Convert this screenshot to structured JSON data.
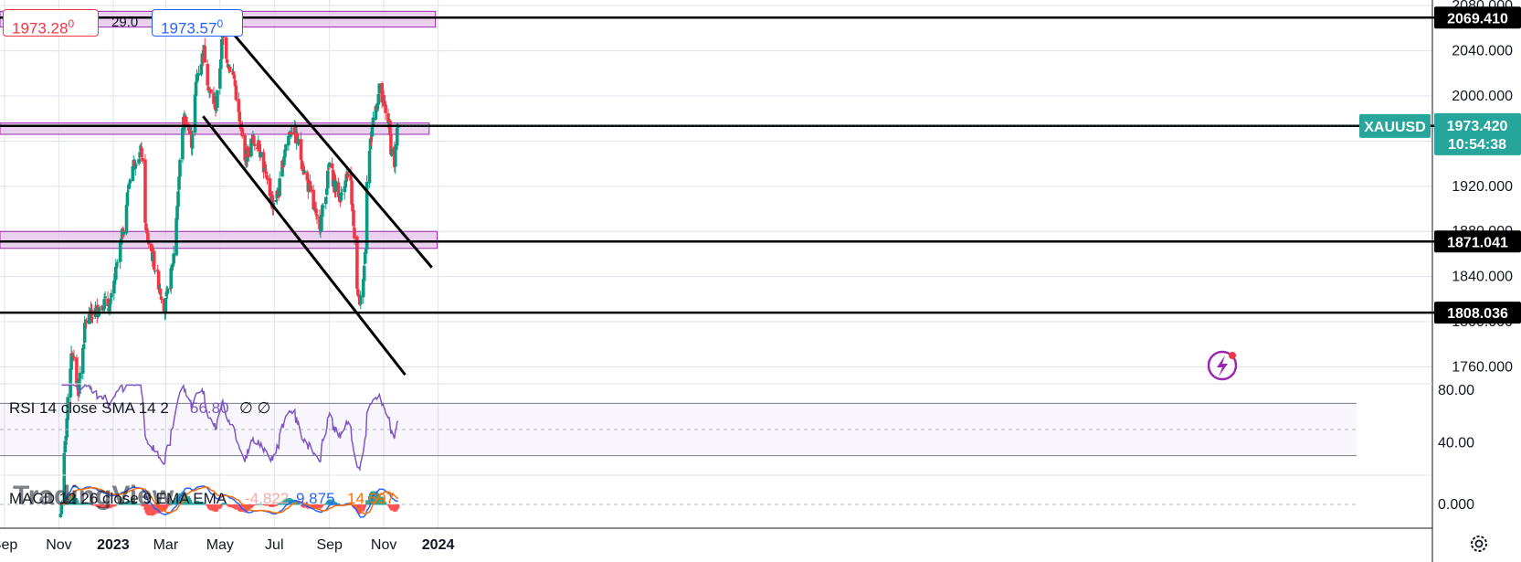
{
  "header": {
    "bid": "1973.28",
    "bid_sup": "0",
    "spread": "29.0",
    "ask": "1973.57",
    "ask_sup": "0",
    "bid_color": "#f23645",
    "ask_color": "#2962ff"
  },
  "chart_data": [
    {
      "type": "candlestick",
      "symbol": "XAUUSD",
      "last_price": "1973.420",
      "countdown": "10:54:38",
      "ylim": [
        1745,
        2085
      ],
      "y_ticks": [
        "2080.000",
        "2040.000",
        "2000.000",
        "1960.000",
        "1920.000",
        "1880.000",
        "1840.000",
        "1800.000",
        "1760.000"
      ],
      "x_ticks": [
        {
          "label": "Sep",
          "date": "2022-09-01"
        },
        {
          "label": "Nov",
          "date": "2022-11-01"
        },
        {
          "label": "2023",
          "date": "2023-01-01"
        },
        {
          "label": "Mar",
          "date": "2023-03-01"
        },
        {
          "label": "May",
          "date": "2023-05-01"
        },
        {
          "label": "Jul",
          "date": "2023-07-01"
        },
        {
          "label": "Sep",
          "date": "2023-09-01"
        },
        {
          "label": "Nov",
          "date": "2023-11-01"
        },
        {
          "label": "2024",
          "date": "2024-01-01"
        }
      ],
      "price_path": [
        [
          "2022-11-03",
          1630
        ],
        [
          "2022-11-15",
          1775
        ],
        [
          "2022-11-23",
          1740
        ],
        [
          "2022-12-01",
          1800
        ],
        [
          "2022-12-13",
          1810
        ],
        [
          "2022-12-20",
          1817
        ],
        [
          "2022-12-29",
          1815
        ],
        [
          "2023-01-12",
          1880
        ],
        [
          "2023-01-20",
          1930
        ],
        [
          "2023-01-26",
          1945
        ],
        [
          "2023-02-02",
          1950
        ],
        [
          "2023-02-07",
          1878
        ],
        [
          "2023-02-13",
          1862
        ],
        [
          "2023-02-21",
          1835
        ],
        [
          "2023-02-28",
          1812
        ],
        [
          "2023-03-06",
          1835
        ],
        [
          "2023-03-10",
          1860
        ],
        [
          "2023-03-14",
          1905
        ],
        [
          "2023-03-20",
          1975
        ],
        [
          "2023-03-24",
          1980
        ],
        [
          "2023-03-30",
          1960
        ],
        [
          "2023-04-05",
          2018
        ],
        [
          "2023-04-13",
          2040
        ],
        [
          "2023-04-19",
          2004
        ],
        [
          "2023-04-27",
          1990
        ],
        [
          "2023-05-04",
          2055
        ],
        [
          "2023-05-10",
          2030
        ],
        [
          "2023-05-17",
          2015
        ],
        [
          "2023-05-23",
          1975
        ],
        [
          "2023-05-30",
          1945
        ],
        [
          "2023-06-06",
          1960
        ],
        [
          "2023-06-13",
          1960
        ],
        [
          "2023-06-22",
          1925
        ],
        [
          "2023-06-29",
          1905
        ],
        [
          "2023-07-06",
          1915
        ],
        [
          "2023-07-13",
          1955
        ],
        [
          "2023-07-20",
          1972
        ],
        [
          "2023-07-27",
          1960
        ],
        [
          "2023-08-03",
          1935
        ],
        [
          "2023-08-10",
          1915
        ],
        [
          "2023-08-17",
          1890
        ],
        [
          "2023-08-22",
          1888
        ],
        [
          "2023-08-29",
          1922
        ],
        [
          "2023-09-01",
          1940
        ],
        [
          "2023-09-07",
          1920
        ],
        [
          "2023-09-14",
          1910
        ],
        [
          "2023-09-19",
          1930
        ],
        [
          "2023-09-25",
          1920
        ],
        [
          "2023-09-29",
          1870
        ],
        [
          "2023-10-03",
          1820
        ],
        [
          "2023-10-06",
          1818
        ],
        [
          "2023-10-12",
          1870
        ],
        [
          "2023-10-13",
          1930
        ],
        [
          "2023-10-20",
          1980
        ],
        [
          "2023-10-27",
          2005
        ],
        [
          "2023-11-01",
          1990
        ],
        [
          "2023-11-06",
          1980
        ],
        [
          "2023-11-09",
          1955
        ],
        [
          "2023-11-13",
          1940
        ],
        [
          "2023-11-16",
          1965
        ],
        [
          "2023-11-17",
          1973.42
        ]
      ],
      "horizontal_levels": [
        {
          "price": 2069.41,
          "label": "2069.410",
          "zone": [
            2061,
            2075
          ],
          "zone_to": "2023-12-29"
        },
        {
          "price": 1973.51,
          "label": "1973.510",
          "zone": [
            1966,
            1976
          ],
          "zone_to": "2023-12-22"
        },
        {
          "price": 1871.041,
          "label": "1871.041",
          "zone": [
            1865,
            1880
          ],
          "zone_to": "2023-12-31"
        },
        {
          "price": 1808.036,
          "label": "1808.036"
        }
      ],
      "trendlines": [
        {
          "from": [
            "2023-05-01",
            2069
          ],
          "to": [
            "2023-12-25",
            1848
          ]
        },
        {
          "from": [
            "2023-04-12",
            1982
          ],
          "to": [
            "2023-11-25",
            1753
          ]
        }
      ],
      "colors": {
        "up": "#089981",
        "down": "#f23645",
        "zone": "#e1bee7",
        "zone_border": "#9c27b0",
        "tag": "#26a69a",
        "line": "#000000"
      }
    },
    {
      "type": "line",
      "title": "RSI 14 close SMA 14 2",
      "value": "56.80",
      "extra": "∅ ∅",
      "ylim": [
        15,
        85
      ],
      "y_ticks": [
        "80.00",
        "40.00"
      ],
      "bands": [
        70,
        30
      ],
      "midline": 50,
      "color": "#7e57c2"
    },
    {
      "type": "line",
      "title": "MACD 12 26 close 9 EMA EMA",
      "values": [
        "-4.822",
        "9.875",
        "14.697"
      ],
      "value_colors": [
        "#f7a9a7",
        "#2962ff",
        "#ff6d00"
      ],
      "y_ticks": [
        "0.000"
      ],
      "series": [
        {
          "name": "MACD",
          "color": "#2962ff"
        },
        {
          "name": "Signal",
          "color": "#ff6d00"
        }
      ],
      "histogram_colors": [
        "#26a69a",
        "#b2dfdb",
        "#ff5252",
        "#ffcdd2"
      ]
    }
  ],
  "watermark": "TradingView",
  "icons": [
    "lightning-alert-icon",
    "settings-gear-icon"
  ]
}
